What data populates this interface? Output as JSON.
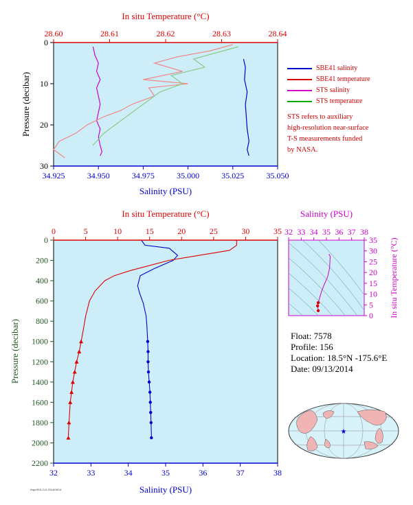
{
  "colors": {
    "plot_bg": "#cdeef8",
    "blue": "#0000cc",
    "red": "#dd0000",
    "magenta": "#cc00cc",
    "green": "#009900",
    "sts_sal": "#dd33dd",
    "sts_temp": "#f08888",
    "sts_temp2": "#88cc88",
    "dark_green": "#225522",
    "map_land": "#f0b4b4",
    "map_sea": "#d8f2fa"
  },
  "legend": {
    "items": [
      {
        "label": "SBE41 salinity",
        "color": "#0000cc"
      },
      {
        "label": "SBE41 temperature",
        "color": "#dd0000"
      },
      {
        "label": "STS salinity",
        "color": "#cc00cc"
      },
      {
        "label": "STS temperature",
        "color": "#00aa00"
      }
    ],
    "note": [
      "STS refers to auxiliary",
      "high-resolution near-surface",
      "T-S measurements funded",
      "by NASA."
    ]
  },
  "float_info": {
    "float": "Float:  7578",
    "profile": "Profile:  156",
    "location": "Location:  18.5°N  -175.6°E",
    "date": "Date:  09/13/2014"
  },
  "credit": "Argo/SOLO-II 2014/09/14",
  "chart_data": [
    {
      "type": "line",
      "panel": "near-surface",
      "xlabel": "Salinity (PSU)",
      "x2label": "In situ Temperature (°C)",
      "ylabel": "Pressure (decibar)",
      "xlim": [
        34.925,
        35.05
      ],
      "x_ticks": [
        "34.925",
        "34.950",
        "34.975",
        "35.000",
        "35.025",
        "35.050"
      ],
      "x2lim": [
        28.6,
        28.64
      ],
      "x2_ticks": [
        "28.60",
        "28.61",
        "28.62",
        "28.63",
        "28.64"
      ],
      "ylim": [
        0,
        30
      ],
      "y_ticks": [
        "0",
        "10",
        "20",
        "30"
      ],
      "y_inverted": true,
      "series": [
        {
          "name": "SBE41 salinity",
          "axis": "salinity",
          "color": "#0000cc",
          "x": [
            35.031,
            35.032,
            35.0315,
            35.033,
            35.032,
            35.0325,
            35.033,
            35.034,
            35.033,
            35.034
          ],
          "y": [
            4,
            6,
            9,
            12,
            15,
            18,
            21,
            24,
            26,
            27.5
          ]
        },
        {
          "name": "STS salinity",
          "axis": "salinity",
          "color": "#cc00cc",
          "x": [
            34.947,
            34.948,
            34.95,
            34.949,
            34.951,
            34.949,
            34.95,
            34.951,
            34.95,
            34.949,
            34.951,
            34.95,
            34.951,
            34.952,
            34.951
          ],
          "y": [
            1,
            3,
            5,
            7,
            9,
            11,
            13,
            15,
            17,
            19,
            21,
            23,
            25,
            26.5,
            27.5
          ]
        },
        {
          "name": "STS temperature",
          "axis": "temperature",
          "color": "#f08888",
          "x": [
            28.632,
            28.628,
            28.622,
            28.618,
            28.623,
            28.616,
            28.624,
            28.617,
            28.618,
            28.614,
            28.612,
            28.609,
            28.606,
            28.604,
            28.601,
            28.6,
            28.602
          ],
          "y": [
            0.5,
            2,
            3.5,
            5,
            7,
            9,
            10,
            11,
            13,
            15,
            16.5,
            18,
            20,
            22,
            24,
            26,
            28
          ]
        },
        {
          "name": "STS temperature (alt)",
          "axis": "temperature",
          "color": "#88cc88",
          "x": [
            28.633,
            28.629,
            28.625,
            28.627,
            28.621,
            28.623,
            28.619,
            28.617,
            28.615,
            28.613,
            28.611,
            28.609,
            28.607
          ],
          "y": [
            1,
            2.5,
            4,
            6,
            8,
            10,
            12,
            14,
            16,
            18,
            20,
            22,
            25
          ]
        }
      ]
    },
    {
      "type": "line",
      "panel": "full-profile",
      "xlabel": "Salinity (PSU)",
      "x2label": "In situ Temperature (°C)",
      "ylabel": "Pressure (decibar)",
      "xlim": [
        32,
        38
      ],
      "x_ticks": [
        "32",
        "33",
        "34",
        "35",
        "36",
        "37",
        "38"
      ],
      "x2lim": [
        0,
        35
      ],
      "x2_ticks": [
        "0",
        "5",
        "10",
        "15",
        "20",
        "25",
        "30",
        "35"
      ],
      "ylim": [
        0,
        2200
      ],
      "y_ticks": [
        "0",
        "200",
        "400",
        "600",
        "800",
        "1000",
        "1200",
        "1400",
        "1600",
        "1800",
        "2000",
        "2200"
      ],
      "y_inverted": true,
      "series": [
        {
          "name": "SBE41 salinity",
          "axis": "salinity",
          "color": "#0000cc",
          "x": [
            34.35,
            34.45,
            35.1,
            35.32,
            35.2,
            34.7,
            34.32,
            34.25,
            34.3,
            34.4,
            34.48,
            34.5,
            34.52,
            34.53,
            34.53,
            34.54,
            34.56,
            34.58,
            34.59,
            34.6,
            34.61,
            34.62
          ],
          "y": [
            0,
            50,
            80,
            150,
            200,
            280,
            350,
            450,
            520,
            620,
            750,
            850,
            1000,
            1100,
            1200,
            1300,
            1400,
            1500,
            1600,
            1700,
            1800,
            1950
          ]
        },
        {
          "name": "SBE41 temperature",
          "axis": "temperature",
          "color": "#dd0000",
          "x": [
            28.6,
            28.6,
            27.5,
            18,
            12,
            9.5,
            8,
            6.5,
            5.6,
            5.0,
            4.6,
            4.3,
            4.0,
            3.6,
            3.3,
            3.0,
            2.8,
            2.6,
            2.4,
            2.3
          ],
          "y": [
            0,
            50,
            100,
            200,
            300,
            350,
            400,
            500,
            600,
            750,
            900,
            1000,
            1100,
            1200,
            1300,
            1400,
            1500,
            1600,
            1800,
            1950
          ]
        }
      ]
    },
    {
      "type": "scatter",
      "panel": "T-S diagram",
      "xlabel": "Salinity (PSU)",
      "ylabel": "In situ Temperature (°C)",
      "xlim": [
        32,
        38
      ],
      "x_ticks": [
        "32",
        "33",
        "34",
        "35",
        "36",
        "37",
        "38"
      ],
      "ylim": [
        0,
        35
      ],
      "y_ticks": [
        "0",
        "5",
        "10",
        "15",
        "20",
        "25",
        "30",
        "35"
      ],
      "series": [
        {
          "name": "T-S",
          "color": "#dd0000",
          "x": [
            35.2,
            35.3,
            35.25,
            35.1,
            34.8,
            34.6,
            34.45,
            34.35,
            34.3,
            34.35
          ],
          "y": [
            28.6,
            27.5,
            22,
            18,
            14,
            11,
            8,
            6,
            4.5,
            2.3
          ]
        }
      ]
    }
  ]
}
